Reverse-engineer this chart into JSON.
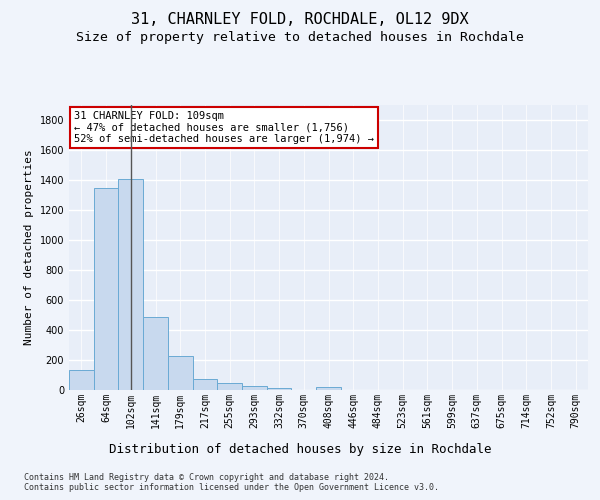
{
  "title1": "31, CHARNLEY FOLD, ROCHDALE, OL12 9DX",
  "title2": "Size of property relative to detached houses in Rochdale",
  "xlabel": "Distribution of detached houses by size in Rochdale",
  "ylabel": "Number of detached properties",
  "bar_labels": [
    "26sqm",
    "64sqm",
    "102sqm",
    "141sqm",
    "179sqm",
    "217sqm",
    "255sqm",
    "293sqm",
    "332sqm",
    "370sqm",
    "408sqm",
    "446sqm",
    "484sqm",
    "523sqm",
    "561sqm",
    "599sqm",
    "637sqm",
    "675sqm",
    "714sqm",
    "752sqm",
    "790sqm"
  ],
  "bar_values": [
    135,
    1350,
    1410,
    490,
    225,
    75,
    45,
    28,
    15,
    0,
    18,
    0,
    0,
    0,
    0,
    0,
    0,
    0,
    0,
    0,
    0
  ],
  "bar_color": "#c8d9ee",
  "bar_edge_color": "#6aaad4",
  "vline_x_index": 2,
  "vline_color": "#555555",
  "annotation_text": "31 CHARNLEY FOLD: 109sqm\n← 47% of detached houses are smaller (1,756)\n52% of semi-detached houses are larger (1,974) →",
  "annotation_box_color": "#ffffff",
  "annotation_box_edge": "#cc0000",
  "ylim": [
    0,
    1900
  ],
  "yticks": [
    0,
    200,
    400,
    600,
    800,
    1000,
    1200,
    1400,
    1600,
    1800
  ],
  "footer": "Contains HM Land Registry data © Crown copyright and database right 2024.\nContains public sector information licensed under the Open Government Licence v3.0.",
  "bg_color": "#f0f4fb",
  "plot_bg_color": "#e8eef8",
  "grid_color": "#ffffff",
  "title1_fontsize": 11,
  "title2_fontsize": 9.5,
  "tick_fontsize": 7,
  "ylabel_fontsize": 8,
  "xlabel_fontsize": 9,
  "annotation_fontsize": 7.5,
  "footer_fontsize": 6
}
